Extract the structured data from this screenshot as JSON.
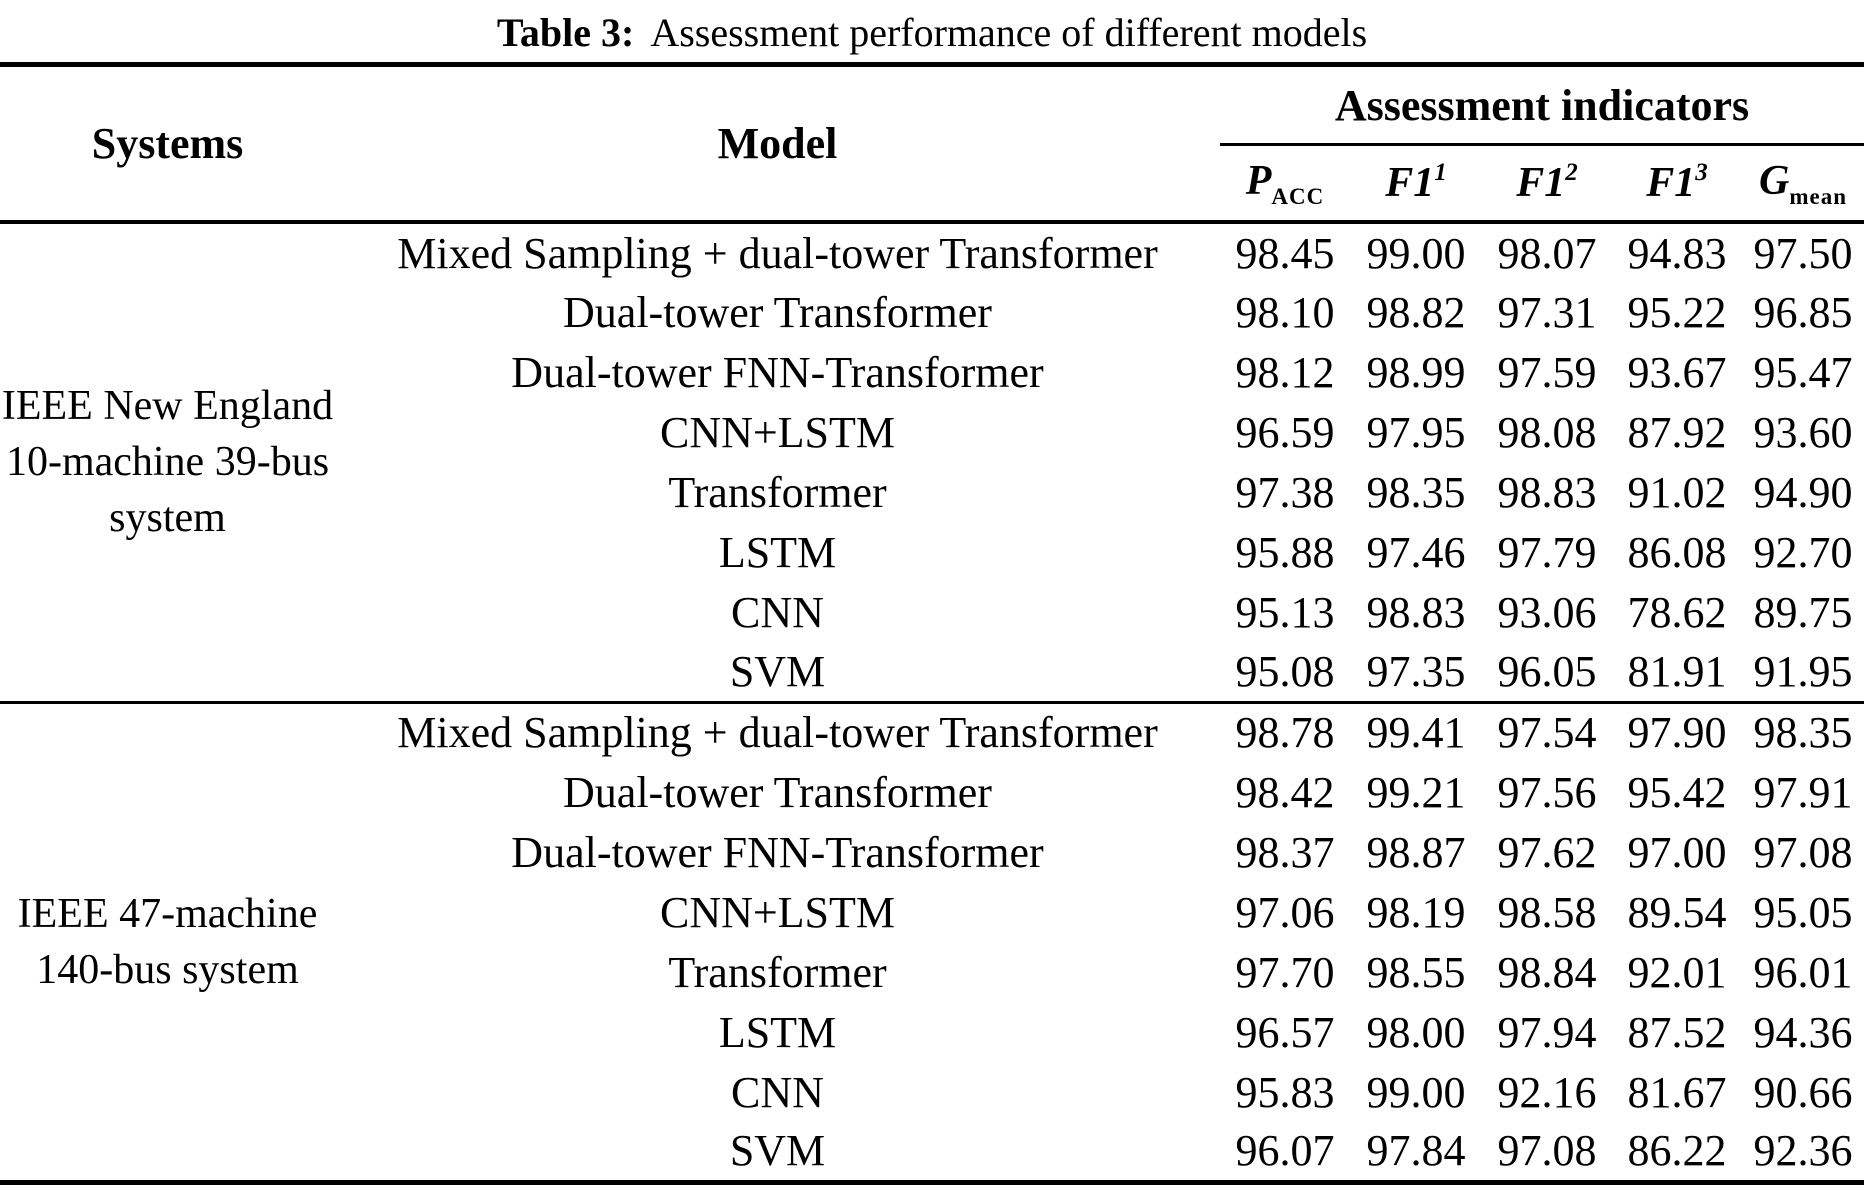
{
  "caption": {
    "label": "Table 3:",
    "text": "Assessment performance of different models"
  },
  "header": {
    "systems": "Systems",
    "model": "Model",
    "indicators_group": "Assessment indicators"
  },
  "indicator_columns": [
    {
      "base": "P",
      "sub": "ACC"
    },
    {
      "base": "F1",
      "sup": "1"
    },
    {
      "base": "F1",
      "sup": "2"
    },
    {
      "base": "F1",
      "sup": "3"
    },
    {
      "base": "G",
      "sub": "mean"
    }
  ],
  "blocks": [
    {
      "system": "IEEE New England 10-machine 39-bus system",
      "system_lines": [
        "IEEE New England",
        "10-machine 39-bus",
        "system"
      ],
      "rows": [
        {
          "model": "Mixed Sampling + dual-tower Transformer",
          "values": [
            "98.45",
            "99.00",
            "98.07",
            "94.83",
            "97.50"
          ]
        },
        {
          "model": "Dual-tower Transformer",
          "values": [
            "98.10",
            "98.82",
            "97.31",
            "95.22",
            "96.85"
          ]
        },
        {
          "model": "Dual-tower FNN-Transformer",
          "values": [
            "98.12",
            "98.99",
            "97.59",
            "93.67",
            "95.47"
          ]
        },
        {
          "model": "CNN+LSTM",
          "values": [
            "96.59",
            "97.95",
            "98.08",
            "87.92",
            "93.60"
          ]
        },
        {
          "model": "Transformer",
          "values": [
            "97.38",
            "98.35",
            "98.83",
            "91.02",
            "94.90"
          ]
        },
        {
          "model": "LSTM",
          "values": [
            "95.88",
            "97.46",
            "97.79",
            "86.08",
            "92.70"
          ]
        },
        {
          "model": "CNN",
          "values": [
            "95.13",
            "98.83",
            "93.06",
            "78.62",
            "89.75"
          ]
        },
        {
          "model": "SVM",
          "values": [
            "95.08",
            "97.35",
            "96.05",
            "81.91",
            "91.95"
          ]
        }
      ]
    },
    {
      "system": "IEEE 47-machine 140-bus system",
      "system_lines": [
        "IEEE 47-machine",
        "140-bus system"
      ],
      "rows": [
        {
          "model": "Mixed Sampling + dual-tower Transformer",
          "values": [
            "98.78",
            "99.41",
            "97.54",
            "97.90",
            "98.35"
          ]
        },
        {
          "model": "Dual-tower Transformer",
          "values": [
            "98.42",
            "99.21",
            "97.56",
            "95.42",
            "97.91"
          ]
        },
        {
          "model": "Dual-tower FNN-Transformer",
          "values": [
            "98.37",
            "98.87",
            "97.62",
            "97.00",
            "97.08"
          ]
        },
        {
          "model": "CNN+LSTM",
          "values": [
            "97.06",
            "98.19",
            "98.58",
            "89.54",
            "95.05"
          ]
        },
        {
          "model": "Transformer",
          "values": [
            "97.70",
            "98.55",
            "98.84",
            "92.01",
            "96.01"
          ]
        },
        {
          "model": "LSTM",
          "values": [
            "96.57",
            "98.00",
            "97.94",
            "87.52",
            "94.36"
          ]
        },
        {
          "model": "CNN",
          "values": [
            "95.83",
            "99.00",
            "92.16",
            "81.67",
            "90.66"
          ]
        },
        {
          "model": "SVM",
          "values": [
            "96.07",
            "97.84",
            "97.08",
            "86.22",
            "92.36"
          ]
        }
      ]
    }
  ]
}
